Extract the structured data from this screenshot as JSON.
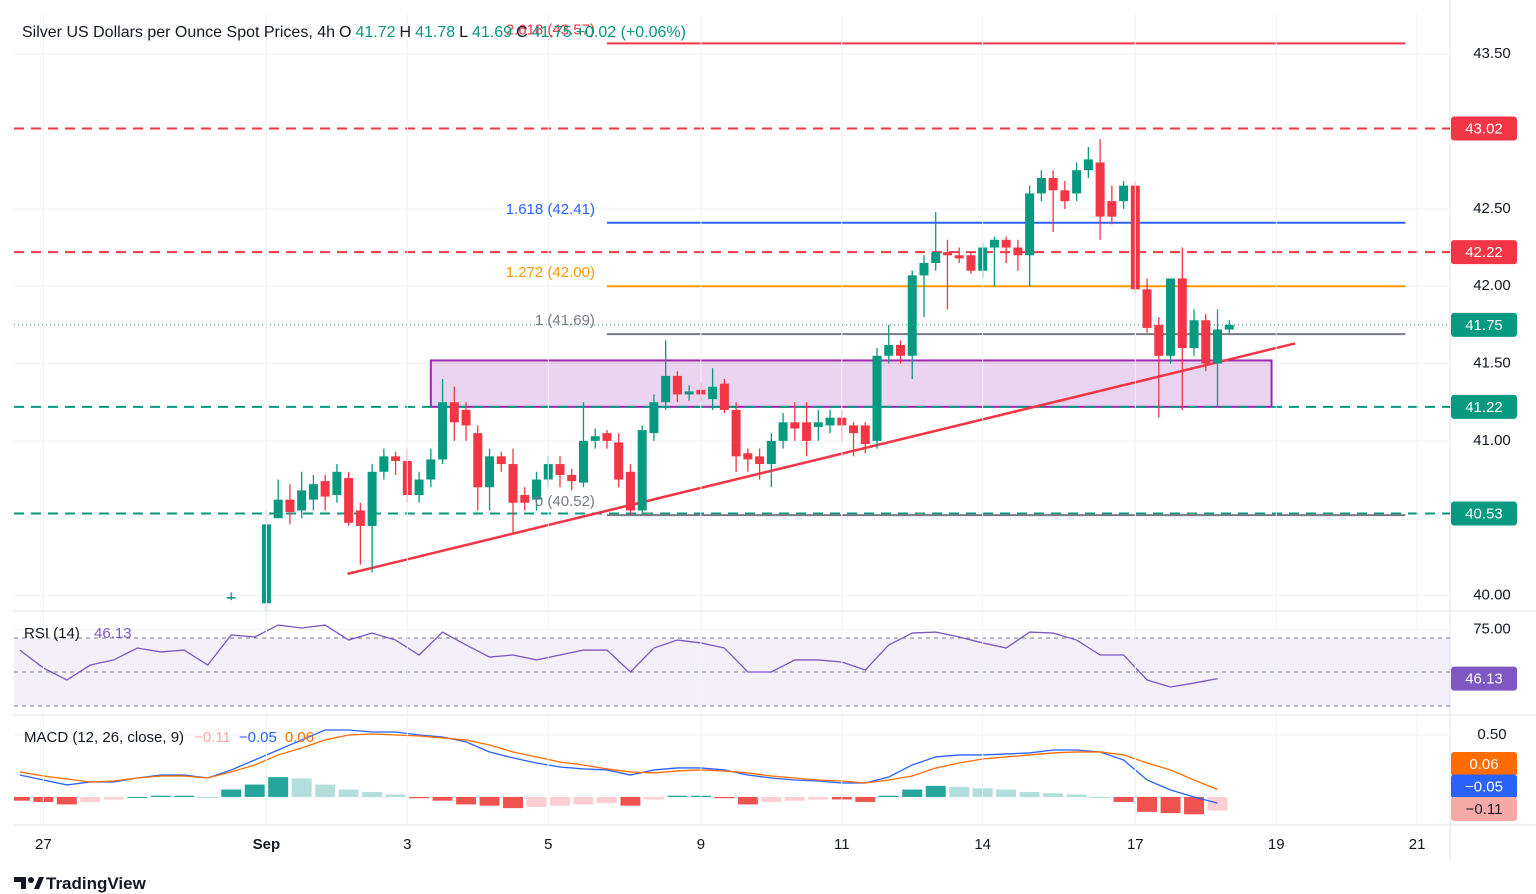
{
  "footer": {
    "brand": "TradingView"
  },
  "chart_data": [
    {
      "type": "candlestick",
      "title": "Silver US Dollars per Ounce Spot Prices, 4h",
      "ohlc_legend": [
        {
          "label": "O",
          "value": 41.72
        },
        {
          "label": "H",
          "value": 41.78
        },
        {
          "label": "L",
          "value": 41.69
        },
        {
          "label": "C",
          "value": 41.75
        }
      ],
      "change": "+0.02 (+0.06%)",
      "up_color": "#089981",
      "down_color": "#f23645",
      "grid": true,
      "x": [
        0,
        3,
        4,
        5,
        6,
        7,
        8,
        9,
        10,
        11,
        12,
        13,
        14,
        15,
        16,
        17,
        18,
        19,
        20,
        21,
        22,
        23,
        24,
        25,
        26,
        27,
        28,
        29,
        30,
        31,
        32,
        33,
        34,
        35,
        36,
        37,
        38,
        39,
        40,
        41,
        42,
        43,
        44,
        45,
        46,
        47,
        48,
        49,
        50,
        51,
        52,
        53,
        54,
        55,
        56,
        57,
        58,
        59,
        60,
        61,
        62,
        63,
        64,
        65,
        66,
        67,
        68,
        69,
        70,
        71,
        72,
        73,
        74,
        75,
        76,
        77,
        78,
        79,
        80,
        81,
        82,
        83,
        84,
        85
      ],
      "open": [
        39.98,
        39.95,
        40.5,
        40.62,
        40.55,
        40.62,
        40.74,
        40.65,
        40.76,
        40.55,
        40.45,
        40.8,
        40.9,
        40.87,
        40.65,
        40.75,
        40.88,
        41.25,
        41.2,
        41.05,
        40.7,
        40.9,
        40.85,
        40.65,
        40.62,
        40.75,
        40.85,
        40.78,
        40.73,
        41.0,
        41.05,
        40.99,
        40.8,
        40.55,
        41.05,
        41.25,
        41.42,
        41.3,
        41.33,
        41.27,
        41.37,
        41.2,
        40.92,
        40.9,
        40.85,
        41.0,
        41.12,
        41.12,
        41.09,
        41.1,
        41.15,
        41.1,
        41.1,
        41.0,
        41.55,
        41.62,
        41.55,
        42.07,
        42.15,
        42.22,
        42.2,
        42.2,
        42.1,
        42.25,
        42.3,
        42.25,
        42.2,
        42.6,
        42.7,
        42.62,
        42.6,
        42.75,
        42.8,
        42.55,
        42.55,
        42.65,
        41.98,
        41.75,
        41.55,
        42.05,
        41.6,
        41.78,
        41.5,
        41.72
      ],
      "high": [
        40.02,
        40.55,
        40.75,
        40.72,
        40.8,
        40.78,
        40.78,
        40.85,
        40.8,
        40.6,
        40.85,
        40.95,
        40.93,
        40.95,
        40.8,
        40.95,
        41.4,
        41.35,
        41.25,
        41.1,
        40.95,
        40.93,
        40.95,
        40.7,
        40.8,
        40.9,
        40.9,
        40.82,
        41.25,
        41.08,
        41.07,
        41.05,
        40.85,
        41.1,
        41.3,
        41.65,
        41.45,
        41.36,
        41.38,
        41.47,
        41.4,
        41.25,
        40.95,
        40.95,
        41.05,
        41.18,
        41.25,
        41.25,
        41.2,
        41.2,
        41.2,
        41.12,
        41.12,
        41.6,
        41.75,
        41.65,
        42.1,
        42.2,
        42.48,
        42.3,
        42.25,
        42.22,
        42.28,
        42.32,
        42.32,
        42.3,
        42.65,
        42.75,
        42.75,
        42.68,
        42.8,
        42.9,
        42.95,
        42.65,
        42.68,
        42.68,
        42.05,
        41.8,
        42.05,
        42.25,
        41.85,
        41.82,
        41.85,
        41.78
      ],
      "low": [
        39.97,
        39.9,
        40.5,
        40.46,
        40.5,
        40.55,
        40.55,
        40.6,
        40.45,
        40.2,
        40.15,
        40.75,
        40.78,
        40.6,
        40.6,
        40.7,
        40.85,
        41.0,
        41.0,
        40.55,
        40.55,
        40.8,
        40.4,
        40.55,
        40.55,
        40.7,
        40.7,
        40.68,
        40.7,
        40.95,
        40.95,
        40.7,
        40.52,
        40.52,
        41.0,
        41.2,
        41.25,
        41.26,
        41.25,
        41.2,
        41.18,
        40.8,
        40.8,
        40.75,
        40.7,
        40.95,
        41.0,
        40.9,
        41.0,
        41.05,
        41.0,
        40.9,
        40.92,
        40.95,
        41.5,
        41.5,
        41.4,
        41.8,
        42.1,
        41.85,
        42.15,
        42.08,
        42.05,
        42.0,
        42.15,
        42.1,
        42.0,
        42.55,
        42.35,
        42.5,
        42.55,
        42.7,
        42.3,
        42.4,
        42.5,
        41.95,
        41.7,
        41.15,
        41.5,
        41.2,
        41.55,
        41.45,
        41.22,
        41.69
      ],
      "close": [
        39.99,
        40.46,
        40.62,
        40.54,
        40.68,
        40.72,
        40.64,
        40.8,
        40.47,
        40.45,
        40.8,
        40.9,
        40.87,
        40.65,
        40.75,
        40.88,
        41.25,
        41.12,
        41.1,
        40.7,
        40.9,
        40.85,
        40.6,
        40.6,
        40.75,
        40.85,
        40.78,
        40.74,
        41.0,
        41.03,
        41.0,
        40.75,
        40.55,
        41.07,
        41.25,
        41.42,
        41.3,
        41.32,
        41.3,
        41.35,
        41.2,
        40.9,
        40.88,
        40.85,
        41.0,
        41.12,
        41.08,
        41.0,
        41.12,
        41.15,
        41.1,
        41.05,
        40.98,
        41.55,
        41.62,
        41.55,
        42.07,
        42.15,
        42.22,
        42.2,
        42.18,
        42.1,
        42.25,
        42.3,
        42.25,
        42.2,
        42.6,
        42.7,
        42.62,
        42.55,
        42.75,
        42.82,
        42.45,
        42.45,
        42.65,
        41.98,
        41.73,
        41.55,
        42.05,
        41.6,
        41.78,
        41.5,
        41.72,
        41.75
      ],
      "xlim": [
        -18.5,
        103.8
      ],
      "xticks": [
        {
          "value": -16,
          "label": "27"
        },
        {
          "value": 3,
          "label": "Sep"
        },
        {
          "value": 15,
          "label": "3"
        },
        {
          "value": 27,
          "label": "5"
        },
        {
          "value": 40,
          "label": "9"
        },
        {
          "value": 52,
          "label": "11"
        },
        {
          "value": 64,
          "label": "14"
        },
        {
          "value": 77,
          "label": "17"
        },
        {
          "value": 89,
          "label": "19"
        },
        {
          "value": 101,
          "label": "21"
        }
      ],
      "ylim": [
        39.9,
        43.76
      ],
      "yticks": [
        {
          "value": 40,
          "label": "40.00"
        },
        {
          "value": 41,
          "label": "41.00"
        },
        {
          "value": 41.5,
          "label": "41.50"
        },
        {
          "value": 42,
          "label": "42.00"
        },
        {
          "value": 42.5,
          "label": "42.50"
        },
        {
          "value": 43.5,
          "label": "43.50"
        }
      ],
      "price_lines": [
        {
          "value": 43.02,
          "color": "#f23645",
          "style": "dashed"
        },
        {
          "value": 42.22,
          "color": "#f23645",
          "style": "dashed"
        },
        {
          "value": 41.75,
          "color": "#089981",
          "style": "dotted"
        },
        {
          "value": 41.22,
          "color": "#089981",
          "style": "dashed"
        },
        {
          "value": 40.53,
          "color": "#089981",
          "style": "dashed"
        }
      ],
      "fib_levels": {
        "x_range": [
          32,
          100
        ],
        "levels": [
          {
            "label": "2.618 (43.57)",
            "value": 43.57,
            "color": "#f23645"
          },
          {
            "label": "1.618 (42.41)",
            "value": 42.41,
            "color": "#2962ff"
          },
          {
            "label": "1.272 (42.00)",
            "value": 42.0,
            "color": "#ff9800"
          },
          {
            "label": "1 (41.69)",
            "value": 41.69,
            "color": "#787b86"
          },
          {
            "label": "0 (40.52)",
            "value": 40.52,
            "color": "#787b86"
          }
        ]
      },
      "zone": {
        "x": [
          17,
          88.6
        ],
        "y": [
          41.22,
          41.52
        ],
        "color": "#9c27b0"
      },
      "trendline": {
        "x": [
          9.9,
          90.6
        ],
        "y": [
          40.14,
          41.63
        ],
        "color": "#f23645"
      }
    },
    {
      "type": "line",
      "title": "RSI (14)",
      "series": [
        {
          "name": "RSI (14)",
          "color": "#7e57c2",
          "x": [
            -18,
            -16,
            -14,
            -12,
            -10,
            -8,
            -6,
            -4,
            -2,
            0,
            2,
            4,
            6,
            8,
            10,
            12,
            14,
            16,
            18,
            20,
            22,
            24,
            26,
            28,
            30,
            32,
            34,
            36,
            38,
            40,
            42,
            44,
            46,
            48,
            50,
            52,
            54,
            56,
            58,
            60,
            62,
            64,
            66,
            68,
            70,
            72,
            74,
            76,
            78,
            80,
            82,
            84
          ],
          "values": [
            62.9,
            52.4,
            45.3,
            54.1,
            57.1,
            64.1,
            61.8,
            62.9,
            54.1,
            71.8,
            70.6,
            77.6,
            75.9,
            77.6,
            68.8,
            72.9,
            68.8,
            60,
            73.5,
            65.9,
            58.8,
            60,
            57.1,
            60,
            62.9,
            62.9,
            50,
            64.1,
            68.8,
            67.1,
            64.1,
            50,
            50,
            57.1,
            57.1,
            55.9,
            51.2,
            65.9,
            72.9,
            73.5,
            70.6,
            67.1,
            64.1,
            73.5,
            72.9,
            68.8,
            60,
            60,
            45.3,
            41.2,
            43.5,
            46.13
          ]
        }
      ],
      "levels": [
        70,
        50,
        30
      ],
      "ylim": [
        25.3,
        85.3
      ],
      "yticks": [
        {
          "value": 75,
          "label": "75.00"
        }
      ]
    },
    {
      "type": "macd",
      "title": "MACD (12, 26, close, 9)",
      "x": [
        -18,
        -16,
        -14,
        -12,
        -10,
        -8,
        -6,
        -4,
        -2,
        0,
        2,
        4,
        6,
        8,
        10,
        12,
        14,
        16,
        18,
        20,
        22,
        24,
        26,
        28,
        30,
        32,
        34,
        36,
        38,
        40,
        42,
        44,
        46,
        48,
        50,
        52,
        54,
        56,
        58,
        60,
        62,
        64,
        66,
        68,
        70,
        72,
        74,
        76,
        78,
        80,
        82,
        84
      ],
      "series": [
        {
          "name": "MACD",
          "color": "#2962ff",
          "values": [
            0.177,
            0.137,
            0.097,
            0.121,
            0.121,
            0.153,
            0.177,
            0.177,
            0.153,
            0.218,
            0.298,
            0.379,
            0.46,
            0.54,
            0.54,
            0.524,
            0.524,
            0.5,
            0.484,
            0.444,
            0.363,
            0.315,
            0.274,
            0.242,
            0.226,
            0.218,
            0.177,
            0.218,
            0.234,
            0.234,
            0.218,
            0.177,
            0.153,
            0.137,
            0.129,
            0.113,
            0.113,
            0.161,
            0.258,
            0.323,
            0.339,
            0.339,
            0.347,
            0.355,
            0.379,
            0.379,
            0.363,
            0.298,
            0.137,
            0.056,
            0,
            -0.05
          ]
        },
        {
          "name": "Signal",
          "color": "#ff6d00",
          "values": [
            0.202,
            0.169,
            0.145,
            0.121,
            0.129,
            0.153,
            0.169,
            0.169,
            0.153,
            0.202,
            0.258,
            0.339,
            0.395,
            0.46,
            0.5,
            0.508,
            0.5,
            0.492,
            0.476,
            0.46,
            0.419,
            0.363,
            0.323,
            0.282,
            0.258,
            0.226,
            0.202,
            0.194,
            0.21,
            0.218,
            0.21,
            0.194,
            0.169,
            0.153,
            0.137,
            0.129,
            0.113,
            0.137,
            0.169,
            0.234,
            0.274,
            0.306,
            0.323,
            0.339,
            0.355,
            0.363,
            0.363,
            0.339,
            0.274,
            0.218,
            0.137,
            0.06
          ]
        }
      ],
      "histogram": [
        -0.03,
        -0.04,
        -0.06,
        -0.04,
        -0.02,
        0,
        0.01,
        0.01,
        0,
        0.06,
        0.1,
        0.16,
        0.15,
        0.1,
        0.06,
        0.04,
        0.02,
        -0.01,
        -0.03,
        -0.06,
        -0.07,
        -0.09,
        -0.08,
        -0.07,
        -0.06,
        -0.05,
        -0.07,
        -0.02,
        0.01,
        0.01,
        -0.01,
        -0.06,
        -0.04,
        -0.03,
        -0.02,
        -0.02,
        -0.04,
        0.01,
        0.06,
        0.09,
        0.08,
        0.07,
        0.06,
        0.04,
        0.03,
        0.02,
        0,
        -0.04,
        -0.12,
        -0.13,
        -0.14,
        -0.11
      ],
      "histogram_colors": {
        "up_rising": "#26a69a",
        "up_falling": "#b2dfdb",
        "down_falling": "#ef5350",
        "down_rising": "#ffcdd2"
      },
      "legend_values": [
        {
          "value": -0.11,
          "label": "−0.11",
          "color": "#f7a9a7"
        },
        {
          "value": -0.05,
          "label": "−0.05",
          "color": "#2962ff"
        },
        {
          "value": 0.06,
          "label": "0.06",
          "color": "#ff6d00"
        }
      ],
      "ylim": [
        -0.226,
        0.653
      ],
      "yticks": [
        {
          "value": 0.5,
          "label": "0.50"
        }
      ]
    }
  ]
}
